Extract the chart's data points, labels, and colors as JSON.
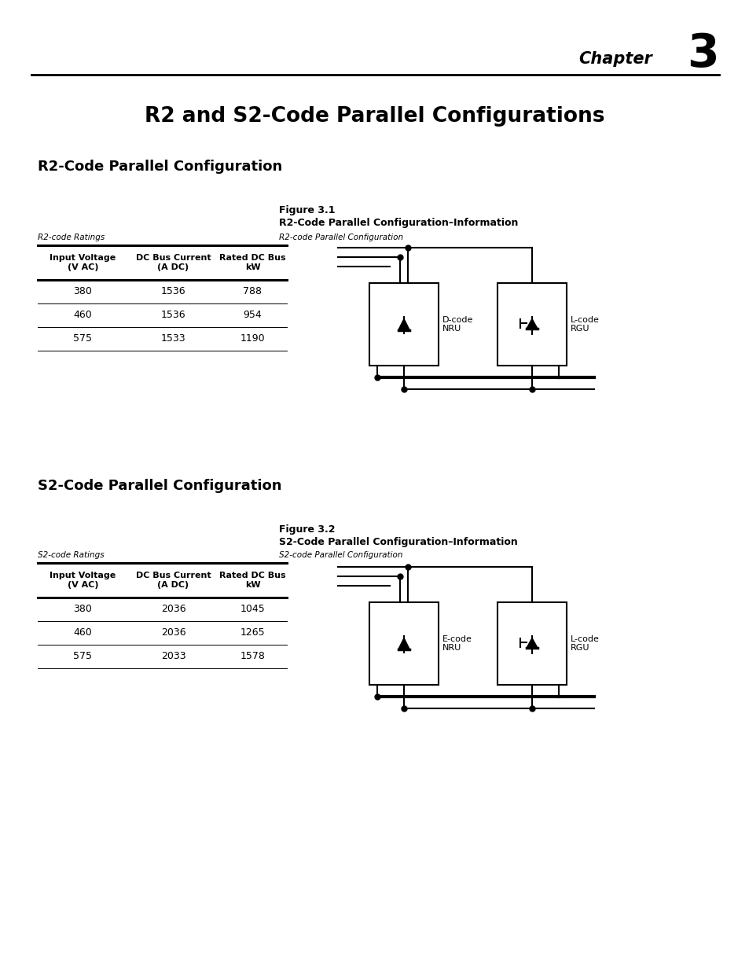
{
  "chapter_label": "Chapter",
  "chapter_number": "3",
  "page_title": "R2 and S2-Code Parallel Configurations",
  "section1_title": "R2-Code Parallel Configuration",
  "section2_title": "S2-Code Parallel Configuration",
  "fig1_label": "Figure 3.1",
  "fig1_caption": "R2-Code Parallel Configuration–Information",
  "fig1_table_label": "R2-code Ratings",
  "fig1_diagram_label": "R2-code Parallel Configuration",
  "fig2_label": "Figure 3.2",
  "fig2_caption": "S2-Code Parallel Configuration–Information",
  "fig2_table_label": "S2-code Ratings",
  "fig2_diagram_label": "S2-code Parallel Configuration",
  "table1_data": [
    [
      "380",
      "1536",
      "788"
    ],
    [
      "460",
      "1536",
      "954"
    ],
    [
      "575",
      "1533",
      "1190"
    ]
  ],
  "table2_data": [
    [
      "380",
      "2036",
      "1045"
    ],
    [
      "460",
      "2036",
      "1265"
    ],
    [
      "575",
      "2033",
      "1578"
    ]
  ],
  "nru1_label": "D-code\nNRU",
  "rgu1_label": "L-code\nRGU",
  "nru2_label": "E-code\nNRU",
  "rgu2_label": "L-code\nRGU",
  "bg_color": "#ffffff",
  "text_color": "#000000"
}
